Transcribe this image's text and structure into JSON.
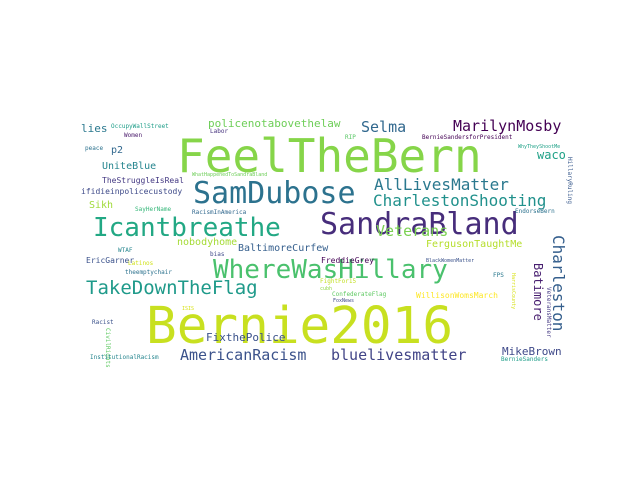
{
  "words": [
    {
      "text": "Bernie2016",
      "color": "#c8e020"
    },
    {
      "text": "FeelTheBern",
      "color": "#86d549"
    },
    {
      "text": "SandraBland",
      "color": "#472d7b"
    },
    {
      "text": "SamDubose",
      "color": "#2c728e"
    },
    {
      "text": "WhereWasHillary",
      "color": "#4ac16d"
    },
    {
      "text": "Icantbreathe",
      "color": "#22a884"
    },
    {
      "text": "TakeDownTheFlag",
      "color": "#1f9a8a"
    },
    {
      "text": "AllLivesMatter",
      "color": "#2a788e"
    },
    {
      "text": "CharlestonShooting",
      "color": "#21918c"
    },
    {
      "text": "MarilynMosby",
      "color": "#440154"
    },
    {
      "text": "Selma",
      "color": "#31688e"
    },
    {
      "text": "AmericanRacism",
      "color": "#3b528b"
    },
    {
      "text": "bluelivesmatter",
      "color": "#414487"
    },
    {
      "text": "Charleston",
      "color": "#355f8d"
    },
    {
      "text": "Veterans",
      "color": "#7ad151"
    },
    {
      "text": "policenotabovethelaw",
      "color": "#6ece58"
    },
    {
      "text": "MikeBrown",
      "color": "#3e4989"
    },
    {
      "text": "Batimore",
      "color": "#481f70"
    },
    {
      "text": "FixthePolice",
      "color": "#3b528b"
    },
    {
      "text": "waco",
      "color": "#1fa187"
    },
    {
      "text": "lies",
      "color": "#2a788e"
    },
    {
      "text": "UniteBlue",
      "color": "#25858e"
    },
    {
      "text": "BaltimoreCurfew",
      "color": "#355f8d"
    },
    {
      "text": "FergusonTaughtMe",
      "color": "#b5de2b"
    },
    {
      "text": "p2",
      "color": "#31688e"
    },
    {
      "text": "nobodyhome",
      "color": "#a5db36"
    },
    {
      "text": "Sikh",
      "color": "#a0da39"
    },
    {
      "text": "TheStruggleIsReal",
      "color": "#443983"
    },
    {
      "text": "ifidieinpolicecustody",
      "color": "#3e4a89"
    },
    {
      "text": "EricGarner",
      "color": "#3b528b"
    },
    {
      "text": "FreddieGrey",
      "color": "#440154"
    },
    {
      "text": "WillisonWomsMarch",
      "color": "#fde725"
    },
    {
      "text": "OccupyWallStreet",
      "color": "#1f9e89"
    },
    {
      "text": "BernieSandersforPresident",
      "color": "#440154"
    },
    {
      "text": "Labor",
      "color": "#46327e"
    },
    {
      "text": "Women",
      "color": "#48186a"
    },
    {
      "text": "peace",
      "color": "#2c728e"
    },
    {
      "text": "RIP",
      "color": "#58c765"
    },
    {
      "text": "WhyTheyShootMe",
      "color": "#1fa187"
    },
    {
      "text": "WhatHappenedToSandraBland",
      "color": "#6ece58"
    },
    {
      "text": "SayHerName",
      "color": "#35b779"
    },
    {
      "text": "RacismInAmerica",
      "color": "#31688e"
    },
    {
      "text": "EndorseBern",
      "color": "#2c728e"
    },
    {
      "text": "HillaryRuling",
      "color": "#38598c"
    },
    {
      "text": "bias",
      "color": "#3e4989"
    },
    {
      "text": "Latinos",
      "color": "#d0e11c"
    },
    {
      "text": "WTAF",
      "color": "#25858e"
    },
    {
      "text": "theemptychair",
      "color": "#2c728e"
    },
    {
      "text": "FightFor15",
      "color": "#c2df23"
    },
    {
      "text": "ConfederateFlag",
      "color": "#5ec962"
    },
    {
      "text": "FoxNews",
      "color": "#3e4989"
    },
    {
      "text": "BlackWomenMatter",
      "color": "#3b528b"
    },
    {
      "text": "FPS",
      "color": "#2a788e"
    },
    {
      "text": "VeteransMatter",
      "color": "#443983"
    },
    {
      "text": "HarrisCounty",
      "color": "#d8e219"
    },
    {
      "text": "BernieSanders",
      "color": "#1f9e89"
    },
    {
      "text": "Racist",
      "color": "#3b528b"
    },
    {
      "text": "CivilRights",
      "color": "#5ec962"
    },
    {
      "text": "ISIS",
      "color": "#d8e219"
    },
    {
      "text": "InstitutionalRacism",
      "color": "#25858e"
    },
    {
      "text": "cubh",
      "color": "#8fd744"
    }
  ]
}
